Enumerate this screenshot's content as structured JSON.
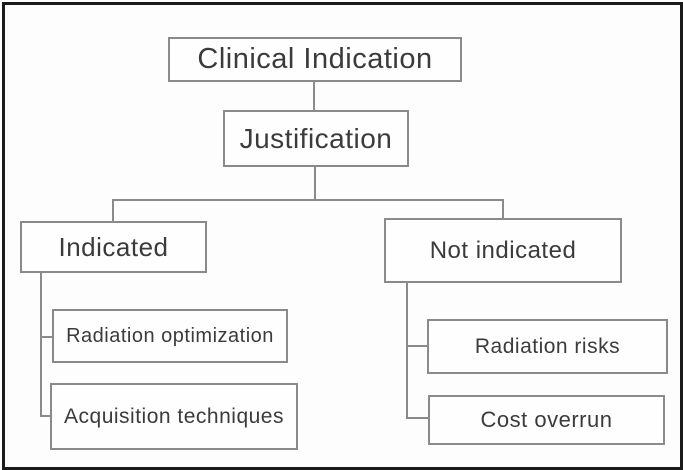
{
  "diagram": {
    "type": "flowchart",
    "colors": {
      "background": "#fdfdfd",
      "box_fill": "#fefefe",
      "box_border": "#8a8a8a",
      "connector": "#8a8a8a",
      "outer_frame": "#1b1b1b",
      "text": "#3b3b3b"
    },
    "nodes": {
      "clinical_indication": {
        "label": "Clinical Indication"
      },
      "justification": {
        "label": "Justification"
      },
      "indicated": {
        "label": "Indicated"
      },
      "not_indicated": {
        "label": "Not indicated"
      },
      "radiation_optimization": {
        "label": "Radiation optimization"
      },
      "acquisition_techniques": {
        "label": "Acquisition techniques"
      },
      "radiation_risks": {
        "label": "Radiation risks"
      },
      "cost_overrun": {
        "label": "Cost overrun"
      }
    },
    "edges": [
      {
        "from": "clinical_indication",
        "to": "justification"
      },
      {
        "from": "justification",
        "to": "indicated"
      },
      {
        "from": "justification",
        "to": "not_indicated"
      },
      {
        "from": "indicated",
        "to": "radiation_optimization"
      },
      {
        "from": "indicated",
        "to": "acquisition_techniques"
      },
      {
        "from": "not_indicated",
        "to": "radiation_risks"
      },
      {
        "from": "not_indicated",
        "to": "cost_overrun"
      }
    ]
  }
}
